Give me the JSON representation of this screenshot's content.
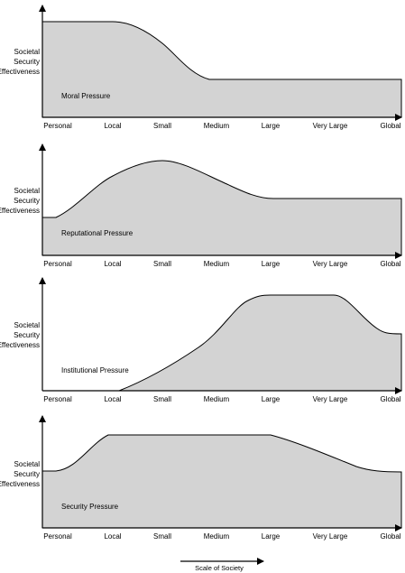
{
  "diagram": {
    "y_axis_label": [
      "Societal",
      "Security",
      "Effectiveness"
    ],
    "x_categories": [
      "Personal",
      "Local",
      "Small",
      "Medium",
      "Large",
      "Very Large",
      "Global"
    ],
    "fill_color": "#d3d3d3",
    "stroke_color": "#000000",
    "scale_label": "Scale of Society",
    "panels": [
      {
        "pressure_label": "Moral Pressure"
      },
      {
        "pressure_label": "Reputational Pressure"
      },
      {
        "pressure_label": "Institutional Pressure"
      },
      {
        "pressure_label": "Security Pressure"
      }
    ]
  }
}
